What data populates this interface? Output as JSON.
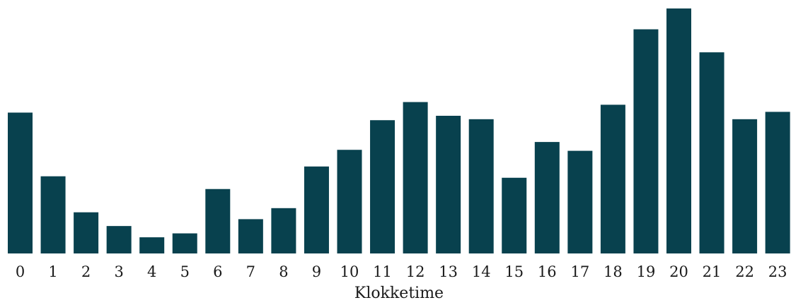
{
  "chart_data": {
    "type": "bar",
    "categories": [
      "0",
      "1",
      "2",
      "3",
      "4",
      "5",
      "6",
      "7",
      "8",
      "9",
      "10",
      "11",
      "12",
      "13",
      "14",
      "15",
      "16",
      "17",
      "18",
      "19",
      "20",
      "21",
      "22",
      "23"
    ],
    "values": [
      57.5,
      31.5,
      16.8,
      11.2,
      6.6,
      8.2,
      26.3,
      14.0,
      18.5,
      35.5,
      42.3,
      54.4,
      61.8,
      56.2,
      54.8,
      30.9,
      45.5,
      41.9,
      60.7,
      91.5,
      100.0,
      82.1,
      54.8,
      57.8
    ],
    "xlabel": "Klokketime",
    "ylabel": "",
    "ylim": [
      0,
      100
    ],
    "grid": false,
    "colors": {
      "bar": "#08414e",
      "text": "#1a1a1a"
    }
  }
}
